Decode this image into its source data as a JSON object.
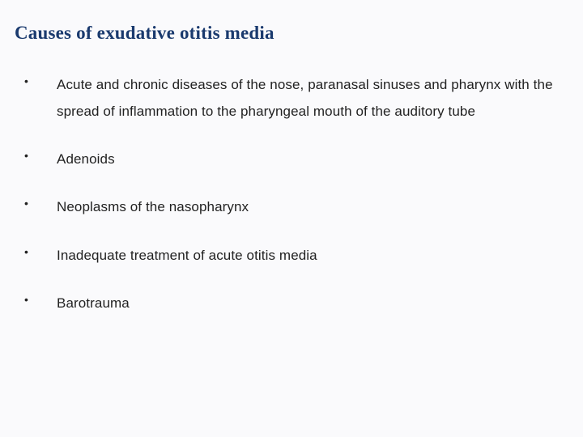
{
  "slide": {
    "title": "Causes of exudative otitis media",
    "background_color": "#fafafc",
    "title_color": "#1a3a6e",
    "title_fontsize": 23,
    "title_font_family": "Georgia, serif",
    "body_fontsize": 17,
    "body_color": "#222222",
    "line_height": 1.95,
    "bullet_marker": "•",
    "items": [
      "Acute and chronic diseases of the nose, paranasal sinuses and pharynx with the spread of inflammation to the pharyngeal mouth of the auditory tube",
      "Adenoids",
      "Neoplasms of the nasopharynx",
      "Inadequate treatment of acute otitis media",
      "Barotrauma"
    ]
  }
}
